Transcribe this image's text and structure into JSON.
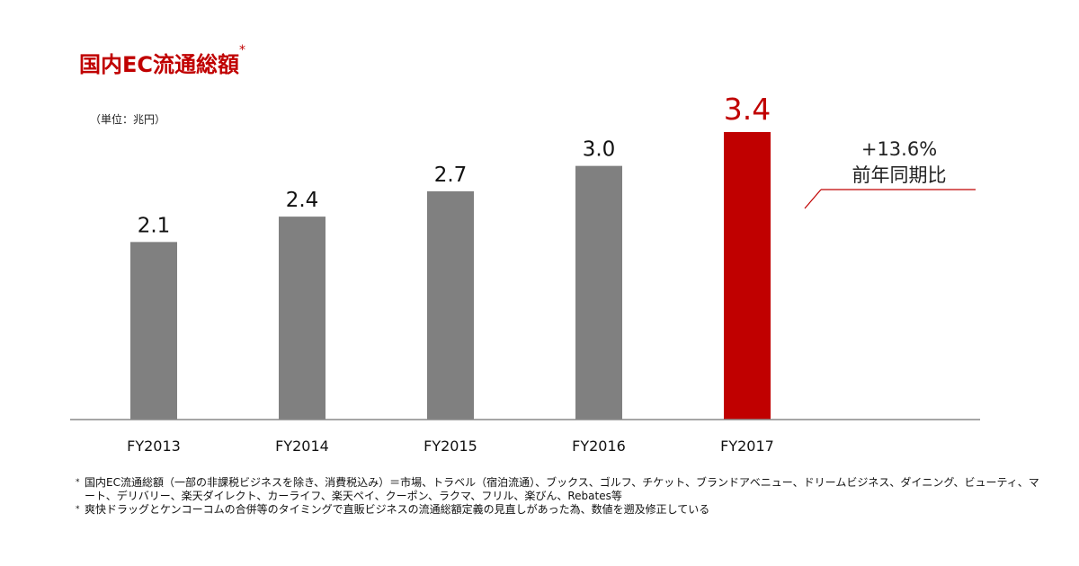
{
  "title": "国内EC流通総額",
  "title_mark": "*",
  "unit_label": "（単位：兆円）",
  "growth": {
    "value": "+13.6%",
    "label": "前年同期比"
  },
  "chart_data": {
    "type": "bar",
    "title": "国内EC流通総額",
    "categories": [
      "FY2013",
      "FY2014",
      "FY2015",
      "FY2016",
      "FY2017"
    ],
    "values": [
      2.1,
      2.4,
      2.7,
      3.0,
      3.4
    ],
    "value_labels": [
      "2.1",
      "2.4",
      "2.7",
      "3.0",
      "3.4"
    ],
    "ylabel": "（単位：兆円）",
    "ylim": [
      0,
      3.4
    ],
    "grid": false,
    "colors": {
      "default": "#808080",
      "highlight": "#c00000",
      "label_default": "#111111",
      "label_highlight": "#c00000"
    },
    "highlight_index": 4
  },
  "footnotes": [
    {
      "mark": "*",
      "text": "国内EC流通総額（一部の非課税ビジネスを除き、消費税込み）＝市場、トラベル（宿泊流通）、ブックス、ゴルフ、チケット、ブランドアベニュー、ドリームビジネス、ダイニング、ビューティ、マート、デリバリー、楽天ダイレクト、カーライフ、楽天ペイ、クーポン、ラクマ、フリル、楽びん、Rebates等"
    },
    {
      "mark": "*",
      "text": "爽快ドラッグとケンコーコムの合併等のタイミングで直販ビジネスの流通総額定義の見直しがあった為、数値を遡及修正している"
    }
  ]
}
